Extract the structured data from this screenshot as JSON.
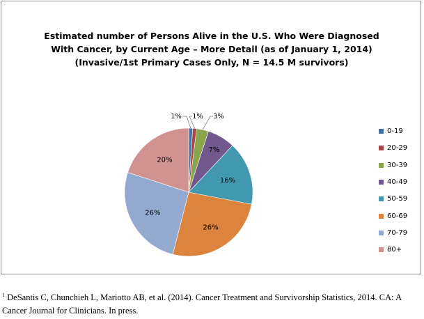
{
  "chart_data": {
    "type": "pie",
    "title_lines": [
      "Estimated number of Persons Alive in the U.S. Who Were Diagnosed",
      "With Cancer, by Current Age – More Detail (as of January 1, 2014)",
      "(Invasive/1st Primary Cases Only, N = 14.5 M survivors)"
    ],
    "categories": [
      "0-19",
      "20-29",
      "30-39",
      "40-49",
      "50-59",
      "60-69",
      "70-79",
      "80+"
    ],
    "values": [
      1,
      1,
      3,
      7,
      16,
      26,
      26,
      20
    ],
    "data_labels": [
      "1%",
      "1%",
      "3%",
      "7%",
      "16%",
      "26%",
      "26%",
      "20%"
    ],
    "colors": [
      "#4572A7",
      "#AA4643",
      "#89A54E",
      "#71588F",
      "#4198AF",
      "#DB843D",
      "#93A9CF",
      "#D19392"
    ],
    "legend_position": "right"
  },
  "footnote": {
    "marker": "1",
    "text": " DeSantis C, Chunchieh L, Mariotto AB, et al. (2014).  Cancer Treatment and Survivorship Statistics, 2014. CA: A Cancer Journal for Clinicians. In press."
  }
}
